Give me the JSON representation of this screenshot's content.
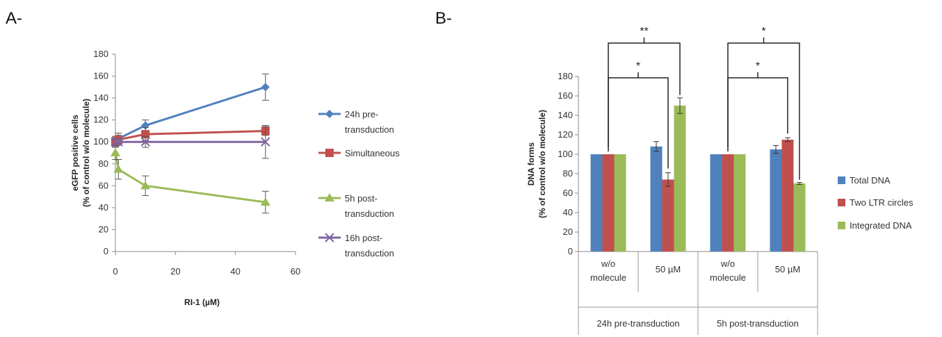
{
  "panels": {
    "a_label": "A-",
    "b_label": "B-"
  },
  "chart_data": [
    {
      "type": "line",
      "title": "",
      "xlabel": "RI-1 (µM)",
      "ylabel_line1": "eGFP positive cells",
      "ylabel_line2": "(% of control w/o molecule)",
      "xlim": [
        0,
        60
      ],
      "ylim": [
        0,
        180
      ],
      "xticks": [
        0,
        20,
        40,
        60
      ],
      "yticks": [
        0,
        20,
        40,
        60,
        80,
        100,
        120,
        140,
        160,
        180
      ],
      "grid": false,
      "legend_position": "right",
      "series": [
        {
          "name_lines": [
            "24h pre-",
            "transduction"
          ],
          "color": "#4f81bd",
          "marker": "diamond",
          "points": [
            {
              "x": 0,
              "y": 100,
              "err": 5
            },
            {
              "x": 1,
              "y": 103,
              "err": 5
            },
            {
              "x": 10,
              "y": 115,
              "err": 5
            },
            {
              "x": 50,
              "y": 150,
              "err": 12
            }
          ]
        },
        {
          "name_lines": [
            "Simultaneous"
          ],
          "color": "#c0504d",
          "marker": "square",
          "points": [
            {
              "x": 0,
              "y": 100,
              "err": 4
            },
            {
              "x": 1,
              "y": 102,
              "err": 4
            },
            {
              "x": 10,
              "y": 107,
              "err": 6
            },
            {
              "x": 50,
              "y": 110,
              "err": 4
            }
          ]
        },
        {
          "name_lines": [
            "5h post-",
            "transduction"
          ],
          "color": "#9bbb59",
          "marker": "triangle",
          "points": [
            {
              "x": 0,
              "y": 90,
              "err": 6
            },
            {
              "x": 1,
              "y": 75,
              "err": 9
            },
            {
              "x": 10,
              "y": 60,
              "err": 9
            },
            {
              "x": 50,
              "y": 45,
              "err": 10
            }
          ]
        },
        {
          "name_lines": [
            "16h post-",
            "transduction"
          ],
          "color": "#8064a2",
          "marker": "x",
          "points": [
            {
              "x": 0,
              "y": 100,
              "err": 3
            },
            {
              "x": 1,
              "y": 100,
              "err": 3
            },
            {
              "x": 10,
              "y": 100,
              "err": 5
            },
            {
              "x": 50,
              "y": 100,
              "err": 15
            }
          ]
        }
      ]
    },
    {
      "type": "bar",
      "title": "",
      "ylabel_line1": "DNA forms",
      "ylabel_line2": "(% of control w/o molecule)",
      "ylim": [
        0,
        180
      ],
      "yticks": [
        0,
        20,
        40,
        60,
        80,
        100,
        120,
        140,
        160,
        180
      ],
      "grid": false,
      "legend_position": "right",
      "categories": [
        [
          "w/o",
          "molecule"
        ],
        [
          "50 µM"
        ],
        [
          "w/o",
          "molecule"
        ],
        [
          "50 µM"
        ]
      ],
      "groups": [
        "24h pre-transduction",
        "5h post-transduction"
      ],
      "series": [
        {
          "name": "Total DNA",
          "color": "#4f81bd",
          "values": [
            100,
            108,
            100,
            105
          ],
          "errors": [
            0,
            5,
            0,
            4
          ]
        },
        {
          "name": "Two LTR circles",
          "color": "#c0504d",
          "values": [
            100,
            74,
            100,
            115
          ],
          "errors": [
            0,
            7,
            0,
            2
          ]
        },
        {
          "name": "Integrated DNA",
          "color": "#9bbb59",
          "values": [
            100,
            150,
            100,
            70
          ],
          "errors": [
            0,
            8,
            0,
            1
          ]
        }
      ],
      "significance": [
        {
          "from_cat": 0,
          "to_cat": 1,
          "from_series": 1,
          "to_series": 1,
          "label": "*",
          "level": 1
        },
        {
          "from_cat": 0,
          "to_cat": 1,
          "from_series": 1,
          "to_series": 2,
          "label": "**",
          "level": 2
        },
        {
          "from_cat": 2,
          "to_cat": 3,
          "from_series": 1,
          "to_series": 1,
          "label": "*",
          "level": 1
        },
        {
          "from_cat": 2,
          "to_cat": 3,
          "from_series": 1,
          "to_series": 2,
          "label": "*",
          "level": 2
        }
      ]
    }
  ]
}
